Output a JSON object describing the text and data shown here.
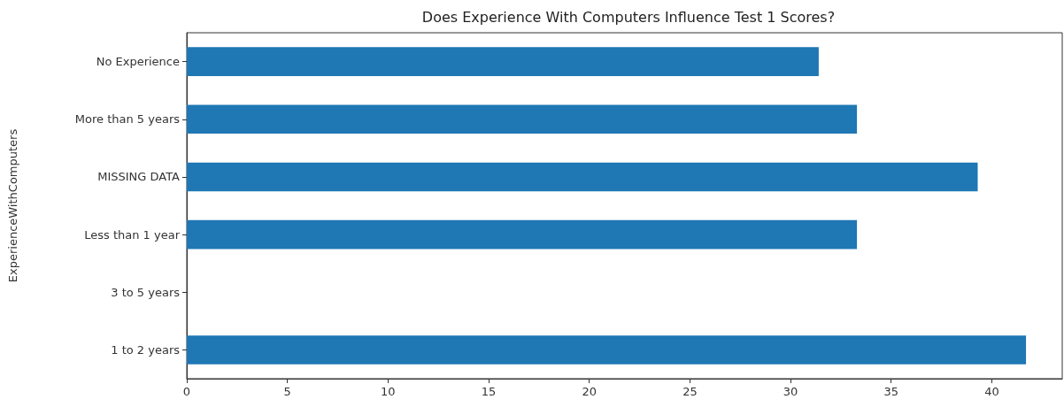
{
  "chart_data": {
    "type": "bar",
    "orientation": "horizontal",
    "title": "Does Experience With Computers Influence Test 1 Scores?",
    "ylabel": "ExperienceWithComputers",
    "categories": [
      "No Experience",
      "More than 5 years",
      "MISSING DATA",
      "Less than 1 year",
      "3 to 5 years",
      "1 to 2 years"
    ],
    "values": [
      31.4,
      33.3,
      39.3,
      33.3,
      null,
      41.7
    ],
    "color": "#1f77b4",
    "xlim": [
      0,
      43.5
    ],
    "xticks": [
      0,
      5,
      10,
      15,
      20,
      25,
      30,
      35,
      40
    ],
    "grid": false
  }
}
